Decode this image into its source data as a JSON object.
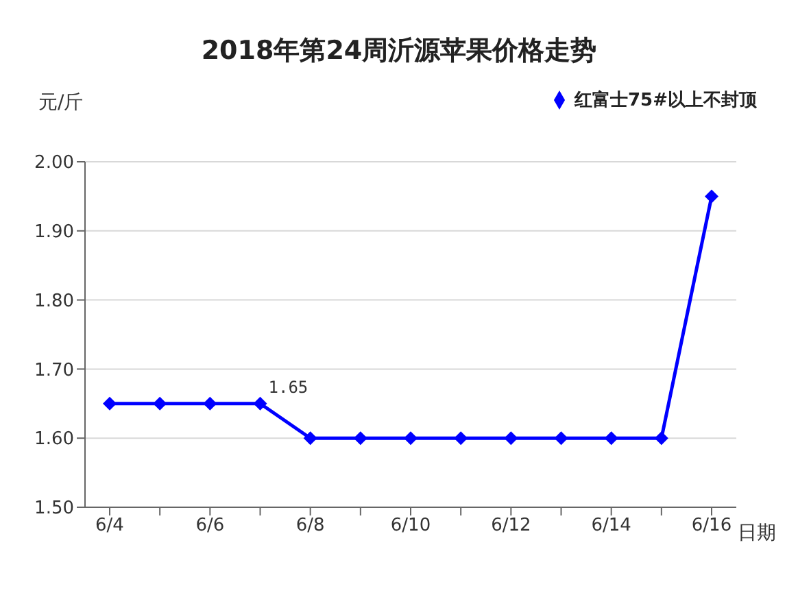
{
  "chart_data": {
    "type": "line",
    "title": "2018年第24周沂源苹果价格走势",
    "ylabel": "元/斤",
    "xlabel": "日期",
    "categories": [
      "6/4",
      null,
      "6/6",
      null,
      "6/8",
      null,
      "6/10",
      null,
      "6/12",
      null,
      "6/14",
      null,
      "6/16"
    ],
    "series": [
      {
        "name": "红富士75#以上不封顶",
        "color": "#0000ff",
        "values": [
          1.65,
          1.65,
          1.65,
          1.65,
          1.6,
          1.6,
          1.6,
          1.6,
          1.6,
          1.6,
          1.6,
          1.6,
          1.95
        ],
        "value_labels": [
          null,
          null,
          null,
          "1.65",
          null,
          null,
          null,
          null,
          null,
          null,
          null,
          null,
          null
        ]
      }
    ],
    "ylim": [
      1.5,
      2.0
    ],
    "yticks": [
      {
        "value": 1.5,
        "label": "1.50"
      },
      {
        "value": 1.6,
        "label": "1.60"
      },
      {
        "value": 1.7,
        "label": "1.70"
      },
      {
        "value": 1.8,
        "label": "1.80"
      },
      {
        "value": 1.9,
        "label": "1.90"
      },
      {
        "value": 2.0,
        "label": "2.00"
      }
    ],
    "grid": "y",
    "legend": "top right",
    "marker": "diamond",
    "line_style": "solid"
  }
}
